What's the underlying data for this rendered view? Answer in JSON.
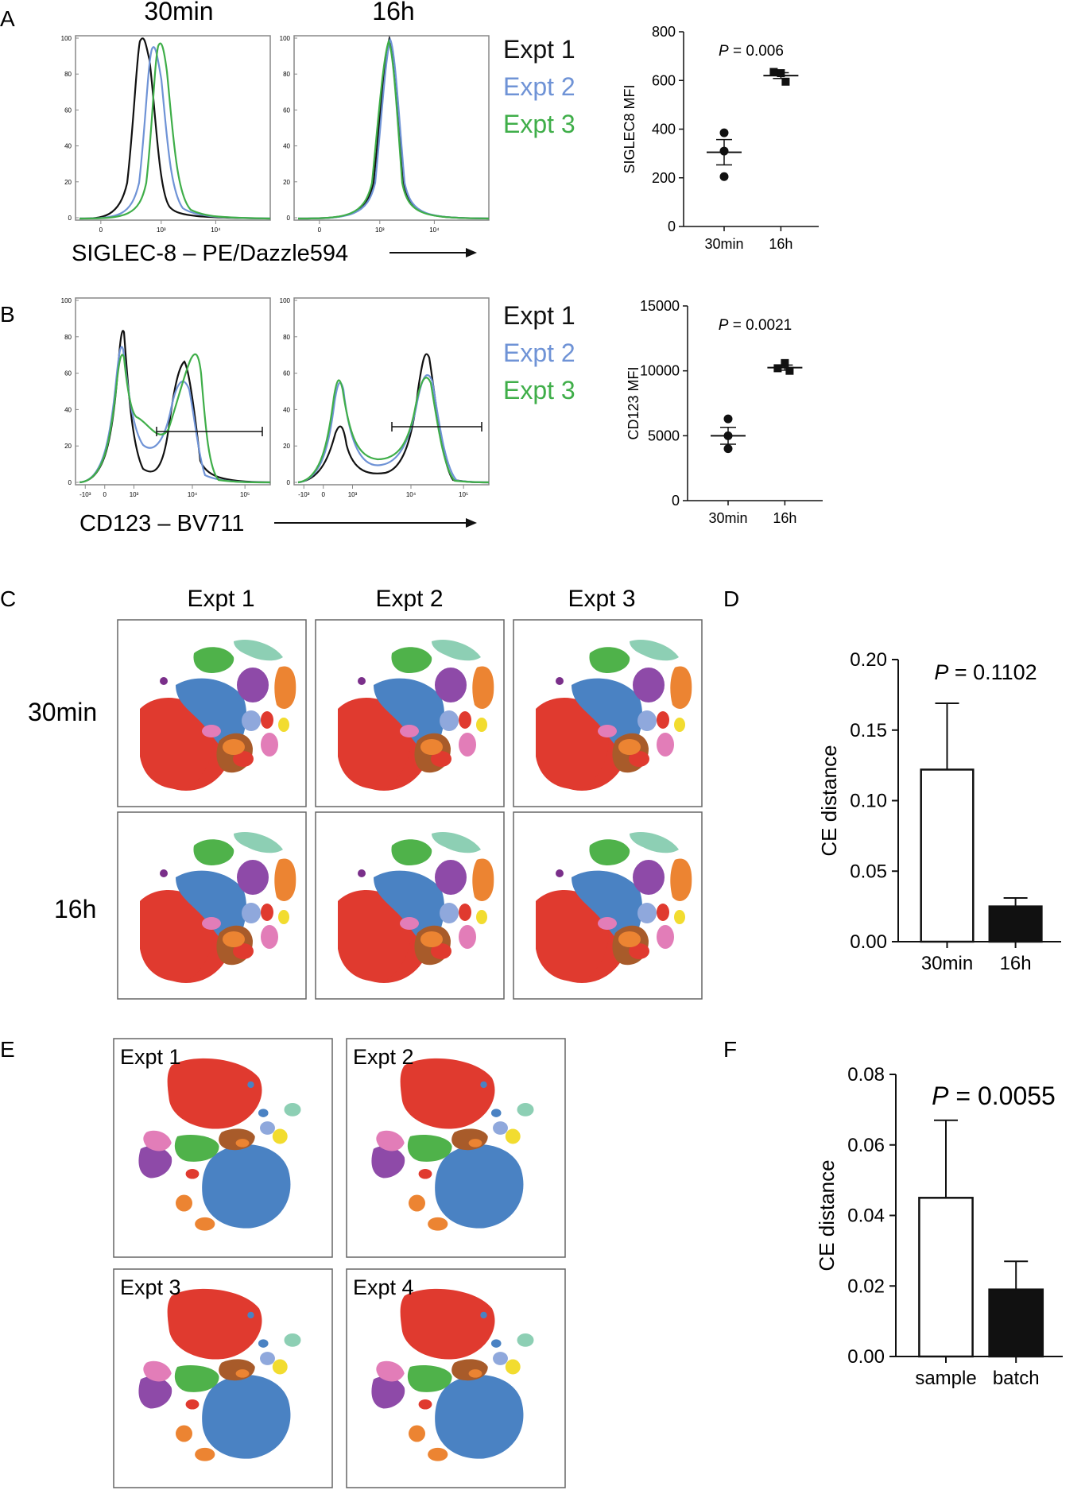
{
  "colors": {
    "expt1": "#111111",
    "expt2": "#6f93d6",
    "expt3": "#3fae49",
    "red": "#e03a2f",
    "blue": "#4a82c3",
    "green": "#4fb24a",
    "purple": "#8e4aa8",
    "orange": "#ec8432",
    "brown": "#a85b2a",
    "pink": "#e27db8",
    "lilac": "#8fa8dc",
    "teal": "#8dcfb4",
    "yellow": "#f2dc2f",
    "plum": "#7a2f8a"
  },
  "panel_letters": {
    "a": "A",
    "b": "B",
    "c": "C",
    "d": "D",
    "e": "E",
    "f": "F"
  },
  "panel_a": {
    "col_30min": "30min",
    "col_16h": "16h",
    "x_axis_label": "SIGLEC-8 – PE/Dazzle594",
    "y_ticks": [
      "100",
      "80",
      "60",
      "40",
      "20",
      "0"
    ],
    "x_ticks_left": [
      "0",
      "10³",
      "10⁴"
    ],
    "x_ticks_right": [
      "0",
      "10³",
      "10⁴"
    ]
  },
  "panel_b": {
    "x_axis_label": "CD123 – BV711",
    "y_ticks": [
      "100",
      "80",
      "60",
      "40",
      "20",
      "0"
    ],
    "x_ticks": [
      "-10³",
      "0",
      "10³",
      "10⁴",
      "10⁵"
    ]
  },
  "legend": {
    "expt1": "Expt 1",
    "expt2": "Expt 2",
    "expt3": "Expt 3"
  },
  "tsne_c": {
    "col_labels": [
      "Expt 1",
      "Expt 2",
      "Expt 3"
    ],
    "row_labels": [
      "30min",
      "16h"
    ]
  },
  "tsne_e": {
    "labels": [
      "Expt 1",
      "Expt 2",
      "Expt 3",
      "Expt 4"
    ]
  },
  "chart_data": [
    {
      "type": "scatter",
      "panel": "A",
      "title": "",
      "ylabel": "SIGLEC8 MFI",
      "xlabel": "",
      "categories": [
        "30min",
        "16h"
      ],
      "ylim": [
        0,
        800
      ],
      "y_ticks": [
        "0",
        "200",
        "400",
        "600",
        "800"
      ],
      "annotation": "P = 0.006",
      "annotation_p": "P",
      "annotation_rest": " = 0.006",
      "points": [
        [
          385,
          310,
          205
        ],
        [
          630,
          635,
          595
        ]
      ],
      "mean": [
        305,
        620
      ],
      "sem": [
        52,
        12
      ]
    },
    {
      "type": "scatter",
      "panel": "B",
      "ylabel": "CD123 MFI",
      "xlabel": "",
      "categories": [
        "30min",
        "16h"
      ],
      "ylim": [
        0,
        15000
      ],
      "y_ticks": [
        "0",
        "5000",
        "10000",
        "15000"
      ],
      "annotation_p": "P",
      "annotation_rest": " = 0.0021",
      "points": [
        [
          6300,
          5000,
          4000
        ],
        [
          10600,
          10200,
          10000
        ]
      ],
      "mean": [
        5000,
        10250
      ],
      "sem": [
        650,
        200
      ]
    },
    {
      "type": "bar",
      "panel": "D",
      "ylabel": "CE distance",
      "categories": [
        "30min",
        "16h"
      ],
      "values": [
        0.122,
        0.025
      ],
      "errors": [
        0.047,
        0.006
      ],
      "fills": [
        "#ffffff",
        "#111111"
      ],
      "ylim": [
        0,
        0.2
      ],
      "y_ticks": [
        "0.00",
        "0.05",
        "0.10",
        "0.15",
        "0.20"
      ],
      "annotation_p": "P",
      "annotation_rest": " = 0.1102"
    },
    {
      "type": "bar",
      "panel": "F",
      "ylabel": "CE distance",
      "categories": [
        "sample",
        "batch"
      ],
      "values": [
        0.045,
        0.019
      ],
      "errors": [
        0.022,
        0.008
      ],
      "fills": [
        "#ffffff",
        "#111111"
      ],
      "ylim": [
        0,
        0.08
      ],
      "y_ticks": [
        "0.00",
        "0.02",
        "0.04",
        "0.06",
        "0.08"
      ],
      "annotation_p": "P",
      "annotation_rest": " = 0.0055"
    }
  ]
}
